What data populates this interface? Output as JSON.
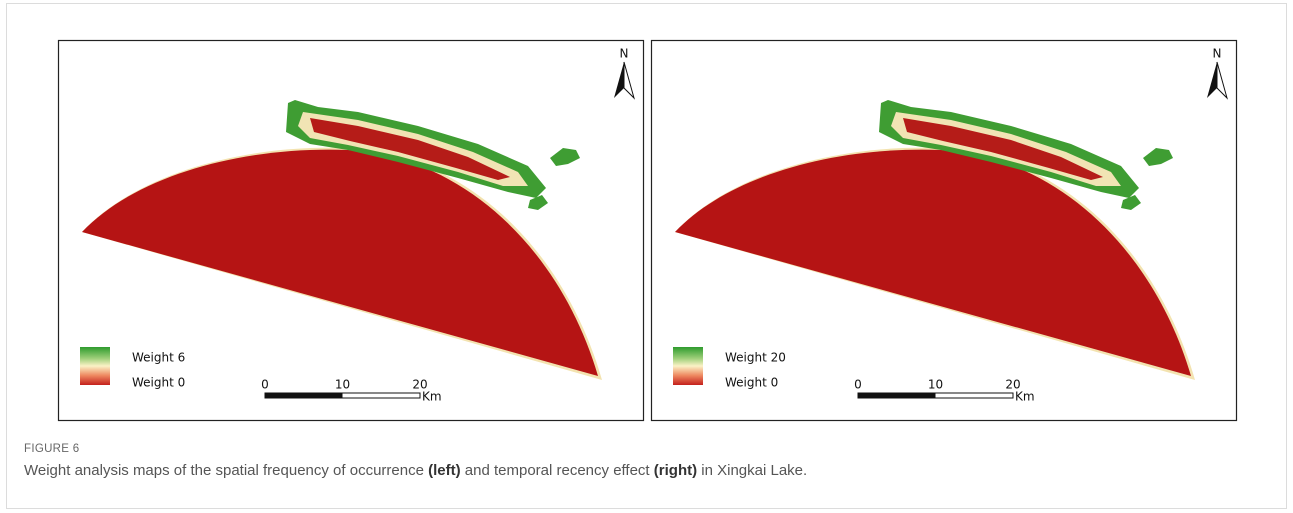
{
  "figure": {
    "label": "FIGURE 6",
    "caption": [
      "Weight analysis maps of the spatial frequency of occurrence ",
      "(left)",
      " and temporal recency effect ",
      "(right)",
      " in Xingkai Lake."
    ]
  },
  "panels": [
    {
      "north": "N",
      "legend": [
        "Weight 6",
        "Weight 0"
      ],
      "scale": {
        "ticks": [
          0,
          10,
          20
        ],
        "unit": "Km"
      }
    },
    {
      "north": "N",
      "legend": [
        "Weight 20",
        "Weight 0"
      ],
      "scale": {
        "ticks": [
          0,
          10,
          20
        ],
        "unit": "Km"
      }
    }
  ]
}
